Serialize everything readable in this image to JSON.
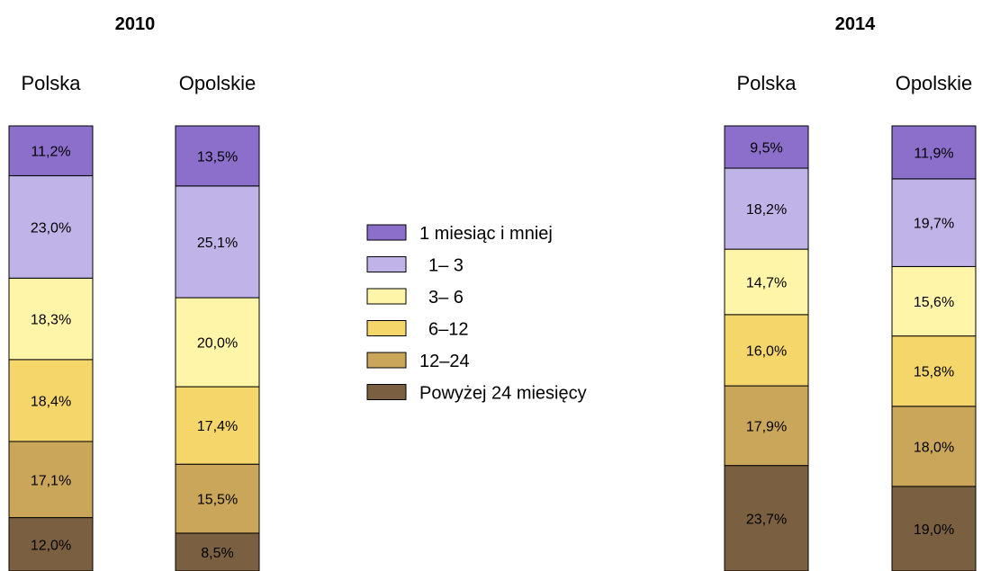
{
  "chart_data": {
    "type": "bar",
    "stacked": true,
    "stack_order_bottom_to_top": [
      "Powyżej 24 miesięcy",
      "12–24",
      "6–12",
      "3– 6",
      "1– 3",
      "1 miesiąc i mniej"
    ],
    "legend": {
      "placement": "center",
      "entries": [
        {
          "label": "1 miesiąc i mniej",
          "color": "#8B6FCB"
        },
        {
          "label": "1– 3",
          "color": "#BFB3E8"
        },
        {
          "label": "3– 6",
          "color": "#FFF5A8"
        },
        {
          "label": "6–12",
          "color": "#F5D66B"
        },
        {
          "label": "12–24",
          "color": "#C9A65A"
        },
        {
          "label": "Powyżej 24 miesięcy",
          "color": "#7A6040"
        }
      ]
    },
    "groups": [
      {
        "year": "2010",
        "bars": [
          {
            "name": "Polska",
            "values": [
              11.2,
              23.0,
              18.3,
              18.4,
              17.1,
              12.0
            ],
            "labels": [
              "11,2%",
              "23,0%",
              "18,3%",
              "18,4%",
              "17,1%",
              "12,0%"
            ]
          },
          {
            "name": "Opolskie",
            "values": [
              13.5,
              25.1,
              20.0,
              17.4,
              15.5,
              8.5
            ],
            "labels": [
              "13,5%",
              "25,1%",
              "20,0%",
              "17,4%",
              "15,5%",
              "8,5%"
            ]
          }
        ]
      },
      {
        "year": "2014",
        "bars": [
          {
            "name": "Polska",
            "values": [
              9.5,
              18.2,
              14.7,
              16.0,
              17.9,
              23.7
            ],
            "labels": [
              "9,5%",
              "18,2%",
              "14,7%",
              "16,0%",
              "17,9%",
              "23,7%"
            ]
          },
          {
            "name": "Opolskie",
            "values": [
              11.9,
              19.7,
              15.6,
              15.8,
              18.0,
              19.0
            ],
            "labels": [
              "11,9%",
              "19,7%",
              "15,6%",
              "15,8%",
              "18,0%",
              "19,0%"
            ]
          }
        ]
      }
    ]
  }
}
